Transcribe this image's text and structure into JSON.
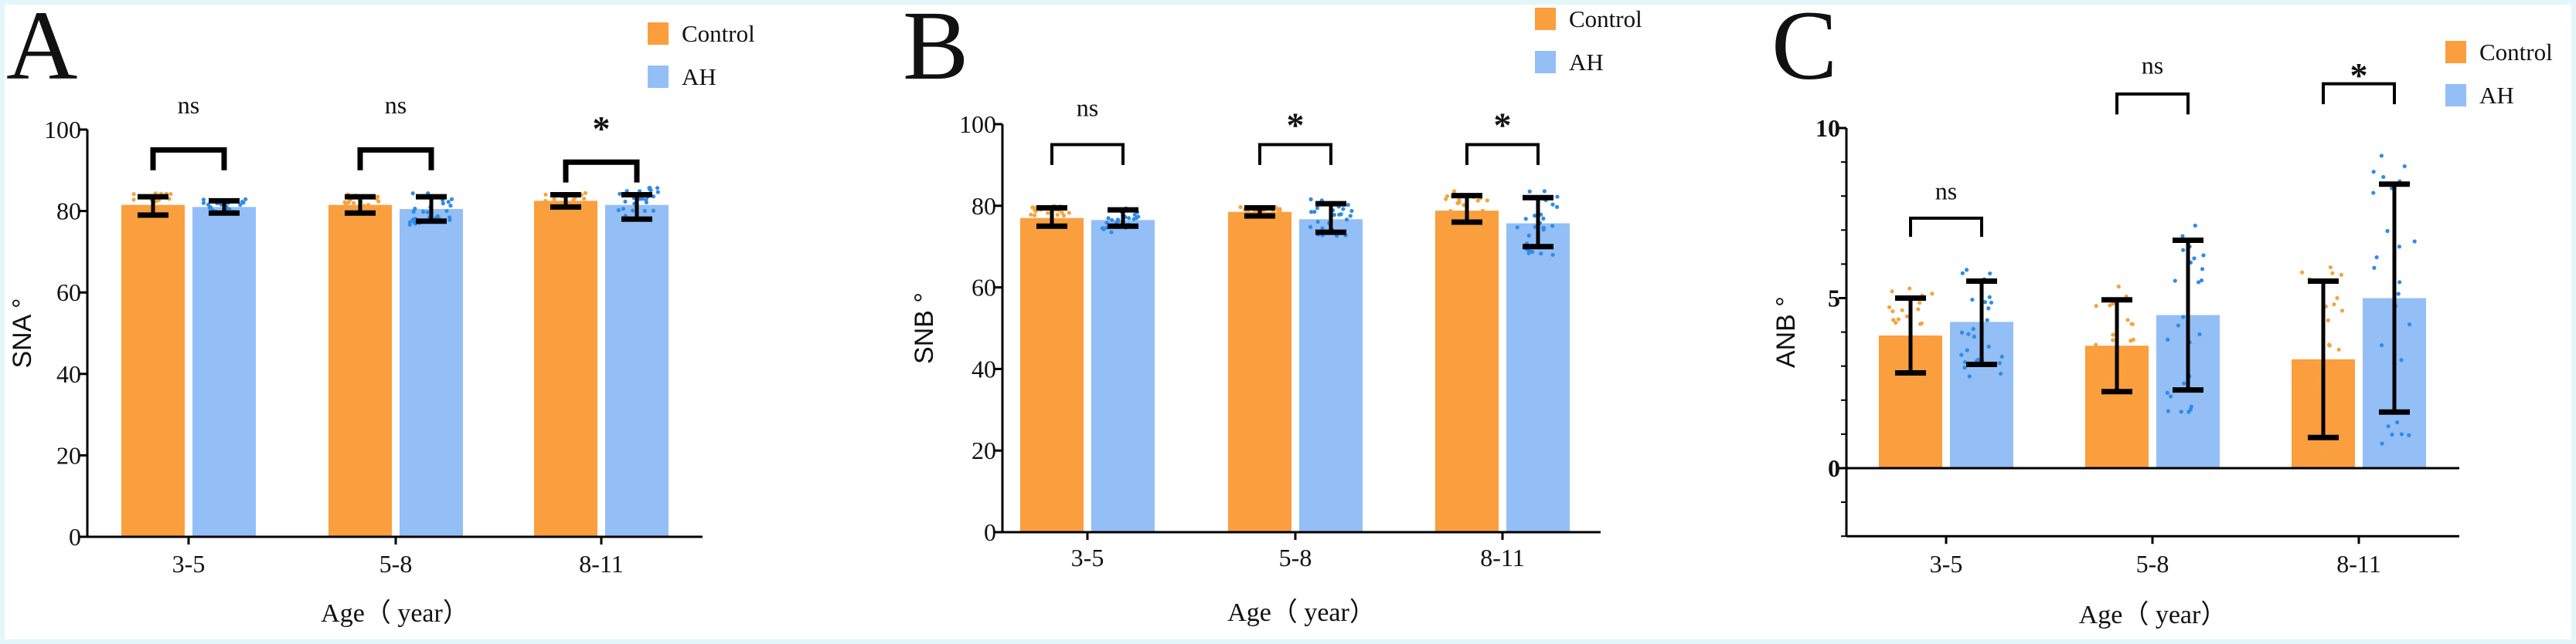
{
  "legend": {
    "control": "Control",
    "ah": "AH"
  },
  "colors": {
    "control": "#fb9e3e",
    "ah": "#93bff6",
    "control_dots": "#f5a33f",
    "ah_dots": "#2f8be8",
    "axis": "#111111"
  },
  "chart_data": [
    {
      "type": "bar",
      "panel_label": "A",
      "xlabel": "Age（ year）",
      "ylabel": "SNA °",
      "categories": [
        "3-5",
        "5-8",
        "8-11"
      ],
      "ylim": [
        0,
        100
      ],
      "yticks": [
        "0",
        "20",
        "40",
        "60",
        "80",
        "100"
      ],
      "series": [
        {
          "name": "Control",
          "values": [
            81.5,
            81.5,
            82.5
          ],
          "error_low": [
            79,
            79.5,
            81
          ],
          "error_high": [
            83.5,
            83.5,
            84
          ]
        },
        {
          "name": "AH",
          "values": [
            81,
            80.5,
            81.5
          ],
          "error_low": [
            79.5,
            77.5,
            78
          ],
          "error_high": [
            82.5,
            83.5,
            84
          ]
        }
      ],
      "significance": [
        "ns",
        "ns",
        "*"
      ],
      "legend_position": "top-right"
    },
    {
      "type": "bar",
      "panel_label": "B",
      "xlabel": "Age（ year）",
      "ylabel": "SNB °",
      "categories": [
        "3-5",
        "5-8",
        "8-11"
      ],
      "ylim": [
        0,
        100
      ],
      "yticks": [
        "0",
        "20",
        "40",
        "60",
        "80",
        "100"
      ],
      "series": [
        {
          "name": "Control",
          "values": [
            77,
            78.5,
            78.8
          ],
          "error_low": [
            75,
            77.5,
            76
          ],
          "error_high": [
            79.5,
            79.5,
            82.5
          ]
        },
        {
          "name": "AH",
          "values": [
            76.5,
            76.7,
            75.7
          ],
          "error_low": [
            75,
            73.5,
            70
          ],
          "error_high": [
            79,
            80.5,
            82
          ]
        }
      ],
      "significance": [
        "ns",
        "*",
        "*"
      ],
      "legend_position": "top-right"
    },
    {
      "type": "bar",
      "panel_label": "C",
      "xlabel": "Age（ year）",
      "ylabel": "ANB °",
      "categories": [
        "3-5",
        "5-8",
        "8-11"
      ],
      "ylim": [
        -2,
        10
      ],
      "yticks": [
        "0",
        "5",
        "10"
      ],
      "series": [
        {
          "name": "Control",
          "values": [
            3.9,
            3.6,
            3.2
          ],
          "error_low": [
            2.8,
            2.25,
            0.9
          ],
          "error_high": [
            5.0,
            4.95,
            5.5
          ]
        },
        {
          "name": "AH",
          "values": [
            4.3,
            4.5,
            5.0
          ],
          "error_low": [
            3.05,
            2.3,
            1.65
          ],
          "error_high": [
            5.5,
            6.7,
            8.35
          ]
        }
      ],
      "significance": [
        "ns",
        "ns",
        "*"
      ],
      "legend_position": "top-right"
    }
  ]
}
